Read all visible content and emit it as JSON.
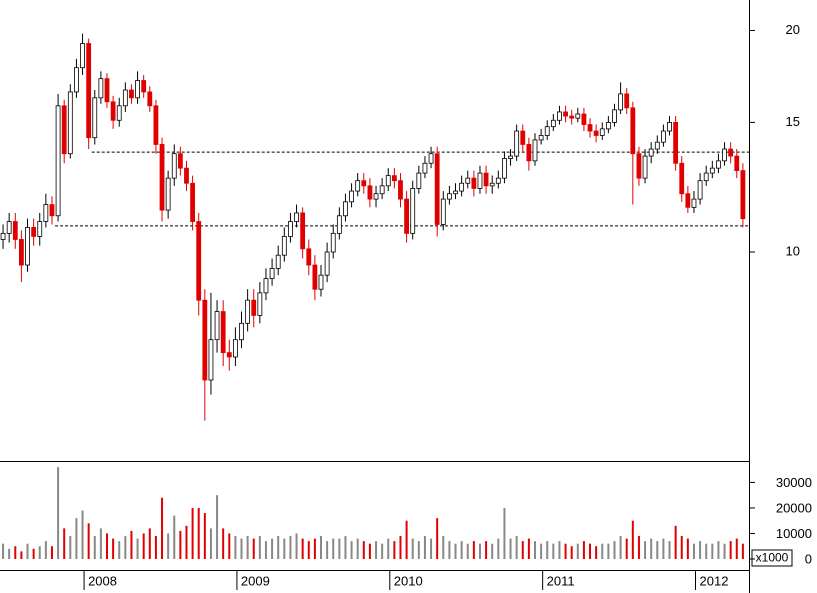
{
  "chart_data": {
    "type": "candlestick",
    "x": [
      2007.47,
      2007.51,
      2007.55,
      2007.59,
      2007.63,
      2007.67,
      2007.71,
      2007.75,
      2007.79,
      2007.83,
      2007.87,
      2007.91,
      2007.95,
      2007.99,
      2008.03,
      2008.07,
      2008.11,
      2008.15,
      2008.19,
      2008.23,
      2008.27,
      2008.31,
      2008.35,
      2008.39,
      2008.43,
      2008.47,
      2008.51,
      2008.55,
      2008.59,
      2008.63,
      2008.67,
      2008.71,
      2008.75,
      2008.79,
      2008.83,
      2008.87,
      2008.91,
      2008.95,
      2008.99,
      2009.03,
      2009.07,
      2009.11,
      2009.15,
      2009.19,
      2009.23,
      2009.27,
      2009.31,
      2009.35,
      2009.39,
      2009.43,
      2009.47,
      2009.51,
      2009.55,
      2009.59,
      2009.63,
      2009.67,
      2009.71,
      2009.75,
      2009.79,
      2009.83,
      2009.87,
      2009.91,
      2009.95,
      2009.99,
      2010.03,
      2010.07,
      2010.11,
      2010.15,
      2010.19,
      2010.23,
      2010.27,
      2010.31,
      2010.35,
      2010.39,
      2010.43,
      2010.47,
      2010.51,
      2010.55,
      2010.59,
      2010.63,
      2010.67,
      2010.71,
      2010.75,
      2010.79,
      2010.83,
      2010.87,
      2010.91,
      2010.95,
      2010.99,
      2011.03,
      2011.07,
      2011.11,
      2011.15,
      2011.19,
      2011.23,
      2011.27,
      2011.31,
      2011.35,
      2011.39,
      2011.43,
      2011.47,
      2011.51,
      2011.55,
      2011.59,
      2011.63,
      2011.67,
      2011.71,
      2011.75,
      2011.79,
      2011.83,
      2011.87,
      2011.91,
      2011.95,
      2011.99,
      2012.03,
      2012.07,
      2012.11,
      2012.15,
      2012.19,
      2012.23,
      2012.27,
      2012.31
    ],
    "open": [
      10.4,
      10.6,
      11.0,
      10.4,
      9.6,
      10.8,
      10.5,
      11.0,
      11.6,
      11.2,
      15.8,
      13.6,
      16.5,
      17.8,
      19.2,
      14.3,
      16.2,
      17.2,
      16.0,
      15.1,
      15.8,
      16.6,
      16.2,
      17.1,
      16.5,
      15.8,
      14.0,
      11.4,
      12.6,
      13.6,
      13.0,
      12.4,
      11.0,
      8.6,
      6.7,
      7.6,
      8.3,
      7.3,
      7.2,
      7.6,
      8.0,
      8.6,
      8.2,
      8.8,
      9.2,
      9.5,
      9.9,
      10.5,
      11.0,
      11.3,
      10.1,
      9.6,
      8.9,
      9.3,
      10.0,
      10.6,
      11.2,
      11.7,
      12.1,
      12.5,
      12.3,
      11.8,
      12.0,
      12.3,
      12.7,
      12.5,
      11.8,
      10.6,
      12.2,
      12.8,
      13.2,
      13.6,
      10.9,
      11.8,
      12.0,
      12.1,
      12.4,
      12.6,
      12.2,
      12.8,
      12.3,
      12.4,
      12.6,
      13.4,
      13.5,
      14.6,
      14.0,
      13.3,
      14.2,
      14.4,
      14.8,
      15.1,
      15.5,
      15.3,
      15.2,
      15.4,
      14.9,
      14.6,
      14.4,
      14.7,
      15.0,
      15.6,
      16.4,
      15.7,
      13.6,
      12.6,
      13.5,
      13.8,
      14.1,
      14.6,
      15.0,
      13.2,
      12.0,
      11.5,
      11.8,
      12.5,
      12.8,
      13.0,
      13.3,
      13.8,
      13.5,
      12.9
    ],
    "high": [
      10.9,
      11.3,
      11.3,
      10.7,
      11.1,
      11.1,
      11.3,
      12.0,
      11.9,
      16.4,
      16.1,
      16.9,
      18.3,
      19.8,
      19.5,
      16.6,
      17.6,
      17.5,
      16.3,
      16.2,
      17.0,
      16.9,
      17.6,
      17.4,
      16.8,
      16.1,
      14.3,
      12.9,
      14.0,
      13.9,
      13.3,
      12.7,
      11.3,
      8.9,
      8.8,
      8.6,
      8.6,
      7.6,
      7.9,
      8.3,
      8.9,
      8.9,
      9.1,
      9.5,
      9.8,
      10.2,
      10.8,
      11.3,
      11.6,
      11.5,
      10.4,
      9.9,
      9.6,
      10.3,
      10.9,
      11.5,
      12.0,
      12.4,
      12.8,
      12.8,
      12.6,
      12.3,
      12.6,
      13.0,
      13.0,
      12.8,
      12.1,
      12.5,
      13.1,
      13.5,
      13.9,
      13.9,
      12.1,
      12.3,
      12.4,
      12.7,
      12.9,
      12.9,
      13.1,
      13.1,
      12.7,
      12.9,
      13.7,
      13.8,
      14.9,
      14.9,
      14.3,
      14.5,
      14.7,
      15.1,
      15.4,
      15.8,
      15.8,
      15.6,
      15.7,
      15.7,
      15.2,
      14.9,
      15.0,
      15.3,
      15.9,
      17.0,
      16.7,
      16.0,
      13.9,
      13.8,
      14.1,
      14.4,
      14.9,
      15.3,
      15.3,
      13.5,
      12.3,
      12.1,
      12.8,
      13.1,
      13.3,
      13.6,
      14.1,
      14.1,
      13.8,
      13.2
    ],
    "low": [
      10.1,
      10.3,
      10.1,
      9.1,
      9.4,
      10.2,
      10.2,
      10.8,
      10.9,
      11.0,
      13.2,
      13.4,
      16.2,
      17.4,
      13.8,
      14.0,
      15.9,
      15.7,
      14.7,
      14.8,
      15.5,
      15.9,
      15.9,
      16.2,
      15.5,
      13.6,
      11.0,
      11.1,
      12.3,
      12.7,
      12.1,
      10.7,
      8.2,
      5.9,
      6.4,
      7.3,
      7.0,
      6.9,
      7.0,
      7.4,
      7.8,
      7.9,
      8.0,
      8.6,
      9.0,
      9.3,
      9.7,
      10.3,
      10.8,
      9.8,
      9.3,
      8.6,
      8.7,
      9.1,
      9.8,
      10.4,
      11.0,
      11.5,
      11.9,
      12.0,
      11.5,
      11.5,
      11.8,
      12.1,
      12.2,
      11.5,
      10.3,
      10.4,
      12.0,
      12.6,
      13.0,
      10.5,
      10.7,
      11.6,
      11.8,
      11.9,
      12.2,
      11.9,
      12.0,
      12.0,
      12.0,
      12.2,
      12.4,
      13.1,
      13.3,
      13.7,
      12.9,
      13.1,
      14.0,
      14.2,
      14.6,
      14.9,
      15.0,
      14.9,
      15.0,
      14.6,
      14.3,
      14.1,
      14.2,
      14.5,
      14.8,
      15.4,
      15.4,
      11.6,
      12.3,
      12.4,
      13.2,
      13.6,
      13.9,
      14.4,
      12.9,
      11.7,
      11.3,
      11.3,
      11.6,
      12.3,
      12.6,
      12.8,
      13.1,
      13.2,
      12.6,
      10.8
    ],
    "close": [
      10.6,
      11.0,
      10.4,
      9.6,
      10.8,
      10.5,
      11.0,
      11.6,
      11.2,
      15.8,
      13.6,
      16.5,
      17.8,
      19.2,
      14.3,
      16.2,
      17.2,
      16.0,
      15.1,
      15.8,
      16.6,
      16.2,
      17.1,
      16.5,
      15.8,
      14.0,
      11.4,
      12.6,
      13.6,
      13.0,
      12.4,
      11.0,
      8.6,
      6.7,
      7.6,
      8.3,
      7.3,
      7.2,
      7.6,
      8.0,
      8.6,
      8.2,
      8.8,
      9.2,
      9.5,
      9.9,
      10.5,
      11.0,
      11.3,
      10.1,
      9.6,
      8.9,
      9.3,
      10.0,
      10.6,
      11.2,
      11.7,
      12.1,
      12.5,
      12.3,
      11.8,
      12.0,
      12.3,
      12.7,
      12.5,
      11.8,
      10.6,
      12.2,
      12.8,
      13.2,
      13.6,
      10.9,
      11.8,
      12.0,
      12.1,
      12.4,
      12.6,
      12.2,
      12.8,
      12.3,
      12.4,
      12.6,
      13.4,
      13.5,
      14.6,
      14.0,
      13.3,
      14.2,
      14.4,
      14.8,
      15.1,
      15.5,
      15.3,
      15.2,
      15.4,
      14.9,
      14.6,
      14.4,
      14.7,
      15.0,
      15.6,
      16.4,
      15.7,
      13.6,
      12.6,
      13.5,
      13.8,
      14.1,
      14.6,
      15.0,
      13.2,
      12.0,
      11.5,
      11.8,
      12.5,
      12.8,
      13.0,
      13.3,
      13.8,
      13.5,
      12.9,
      11.1
    ],
    "volume": [
      6000,
      4000,
      5000,
      3000,
      6000,
      4000,
      5000,
      7000,
      5000,
      36000,
      12000,
      9000,
      16000,
      19000,
      14000,
      9000,
      12000,
      10000,
      8000,
      7000,
      9000,
      11000,
      8000,
      10000,
      12000,
      9000,
      24000,
      10000,
      17000,
      11000,
      13000,
      20000,
      20000,
      18000,
      12000,
      25000,
      12000,
      10000,
      9000,
      8000,
      9000,
      8000,
      9000,
      7000,
      8000,
      9000,
      8000,
      9000,
      10000,
      8000,
      7000,
      8000,
      9000,
      7000,
      8000,
      8000,
      9000,
      7000,
      8000,
      7000,
      6000,
      7000,
      6000,
      8000,
      7000,
      9000,
      15000,
      8000,
      7000,
      9000,
      8000,
      16000,
      9000,
      7000,
      6000,
      7000,
      6000,
      7000,
      6000,
      7000,
      6000,
      8000,
      20000,
      8000,
      9000,
      7000,
      8000,
      7000,
      6000,
      7000,
      6000,
      7000,
      6000,
      5000,
      6000,
      7000,
      6000,
      5000,
      6000,
      6000,
      7000,
      9000,
      8000,
      15000,
      9000,
      7000,
      8000,
      7000,
      8000,
      7000,
      13000,
      9000,
      8000,
      6000,
      7000,
      6000,
      6000,
      7000,
      6000,
      7000,
      8000,
      6000
    ],
    "xlim": [
      2007.45,
      2012.35
    ],
    "xticks": [
      2008,
      2009,
      2010,
      2011,
      2012
    ],
    "ylim": [
      5.2,
      22
    ],
    "yticks": [
      10,
      15,
      20
    ],
    "log_scale": true,
    "y2lim": [
      0,
      38000
    ],
    "y2ticks": [
      0,
      10000,
      20000,
      30000
    ],
    "volume_unit": "x1000",
    "up_color": "#000000",
    "down_color": "#e00000",
    "levels": [
      {
        "value": 13.67,
        "from": 2008.05
      },
      {
        "value": 10.85,
        "from": 2007.81
      }
    ]
  }
}
